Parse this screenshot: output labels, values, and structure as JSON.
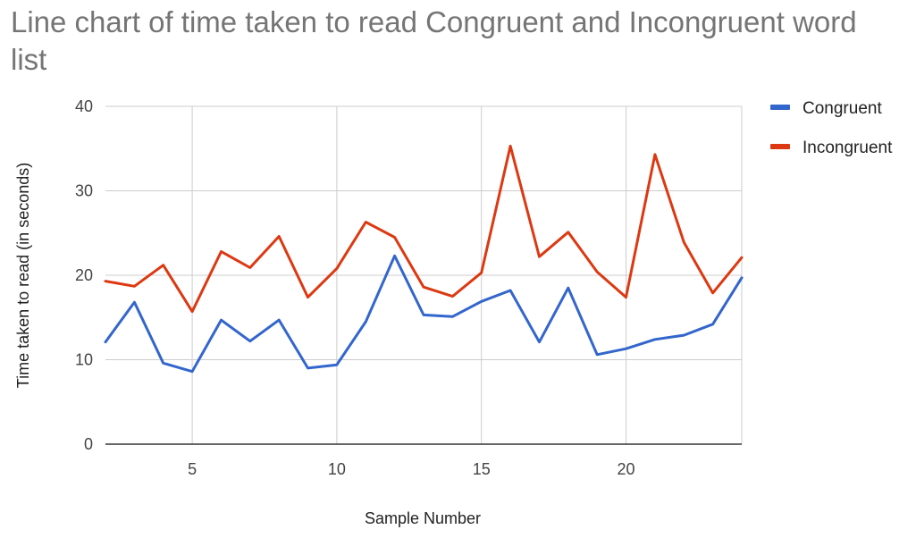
{
  "chart_data": {
    "type": "line",
    "title": "Line chart of time taken to read Congruent and Incongruent word list",
    "xlabel": "Sample Number",
    "ylabel": "Time taken to read (in seconds)",
    "xlim": [
      2,
      24
    ],
    "ylim": [
      0,
      40
    ],
    "x_ticks": [
      5,
      10,
      15,
      20
    ],
    "y_ticks": [
      0,
      10,
      20,
      30,
      40
    ],
    "grid": true,
    "legend_position": "right",
    "x": [
      2,
      3,
      4,
      5,
      6,
      7,
      8,
      9,
      10,
      11,
      12,
      13,
      14,
      15,
      16,
      17,
      18,
      19,
      20,
      21,
      22,
      23,
      24
    ],
    "series": [
      {
        "name": "Congruent",
        "color": "#3366cc",
        "values": [
          12.1,
          16.8,
          9.6,
          8.6,
          14.7,
          12.2,
          14.7,
          9.0,
          9.4,
          14.5,
          22.3,
          15.3,
          15.1,
          16.9,
          18.2,
          12.1,
          18.5,
          10.6,
          11.3,
          12.4,
          12.9,
          14.2,
          19.7
        ]
      },
      {
        "name": "Incongruent",
        "color": "#dc3912",
        "values": [
          19.3,
          18.7,
          21.2,
          15.7,
          22.8,
          20.9,
          24.6,
          17.4,
          20.8,
          26.3,
          24.5,
          18.6,
          17.5,
          20.3,
          35.3,
          22.2,
          25.1,
          20.4,
          17.4,
          34.3,
          23.9,
          17.9,
          22.1
        ]
      }
    ]
  }
}
